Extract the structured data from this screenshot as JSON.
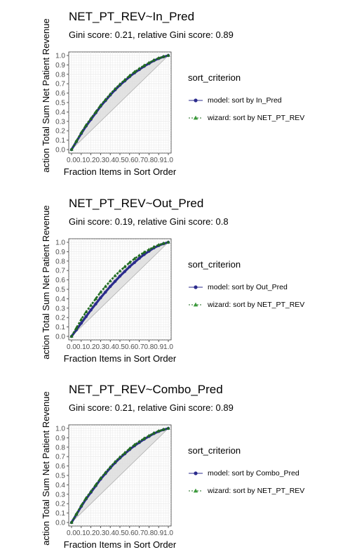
{
  "colors": {
    "model": "#2b2b8c",
    "wizard": "#1f6b1f",
    "band": "#d9d9d9",
    "grid": "#ebebeb",
    "diag": "#b0b0b0"
  },
  "chart_data": [
    {
      "type": "line",
      "title": "NET_PT_REV~In_Pred",
      "subtitle": "Gini score: 0.21, relative Gini score: 0.89",
      "xlabel": "Fraction Items in Sort Order",
      "ylabel": "action Total Sum Net Patient Revenue",
      "xlim": [
        0,
        1
      ],
      "ylim": [
        0,
        1
      ],
      "ticks": [
        "0.0",
        "0.1",
        "0.2",
        "0.3",
        "0.4",
        "0.5",
        "0.6",
        "0.7",
        "0.8",
        "0.9",
        "1.0"
      ],
      "grid": true,
      "legend_position": "right",
      "legend_title": "sort_criterion",
      "x": [
        0,
        0.05,
        0.1,
        0.15,
        0.2,
        0.25,
        0.3,
        0.35,
        0.4,
        0.45,
        0.5,
        0.55,
        0.6,
        0.65,
        0.7,
        0.75,
        0.8,
        0.85,
        0.9,
        0.95,
        1.0
      ],
      "series": [
        {
          "name": "model: sort by In_Pred",
          "marker": "circle",
          "values": [
            0,
            0.085,
            0.17,
            0.25,
            0.32,
            0.39,
            0.46,
            0.52,
            0.58,
            0.635,
            0.685,
            0.73,
            0.775,
            0.815,
            0.85,
            0.885,
            0.915,
            0.945,
            0.968,
            0.986,
            1.0
          ]
        },
        {
          "name": "wizard: sort by NET_PT_REV",
          "marker": "triangle",
          "values": [
            0,
            0.09,
            0.18,
            0.26,
            0.33,
            0.4,
            0.47,
            0.53,
            0.59,
            0.645,
            0.695,
            0.74,
            0.785,
            0.825,
            0.86,
            0.893,
            0.922,
            0.95,
            0.972,
            0.988,
            1.0
          ]
        }
      ]
    },
    {
      "type": "line",
      "title": "NET_PT_REV~Out_Pred",
      "subtitle": "Gini score: 0.19, relative Gini score: 0.8",
      "xlabel": "Fraction Items in Sort Order",
      "ylabel": "action Total Sum Net Patient Revenue",
      "xlim": [
        0,
        1
      ],
      "ylim": [
        0,
        1
      ],
      "ticks": [
        "0.0",
        "0.1",
        "0.2",
        "0.3",
        "0.4",
        "0.5",
        "0.6",
        "0.7",
        "0.8",
        "0.9",
        "1.0"
      ],
      "grid": true,
      "legend_position": "right",
      "legend_title": "sort_criterion",
      "x": [
        0,
        0.05,
        0.1,
        0.15,
        0.2,
        0.25,
        0.3,
        0.35,
        0.4,
        0.45,
        0.5,
        0.55,
        0.6,
        0.65,
        0.7,
        0.75,
        0.8,
        0.85,
        0.9,
        0.95,
        1.0
      ],
      "series": [
        {
          "name": "model: sort by Out_Pred",
          "marker": "circle",
          "values": [
            0,
            0.07,
            0.14,
            0.21,
            0.28,
            0.345,
            0.41,
            0.47,
            0.53,
            0.585,
            0.64,
            0.69,
            0.74,
            0.785,
            0.83,
            0.87,
            0.905,
            0.94,
            0.965,
            0.985,
            1.0
          ]
        },
        {
          "name": "wizard: sort by NET_PT_REV",
          "marker": "triangle",
          "values": [
            0,
            0.09,
            0.18,
            0.26,
            0.33,
            0.4,
            0.47,
            0.53,
            0.59,
            0.645,
            0.695,
            0.74,
            0.785,
            0.825,
            0.86,
            0.893,
            0.922,
            0.95,
            0.972,
            0.988,
            1.0
          ]
        }
      ]
    },
    {
      "type": "line",
      "title": "NET_PT_REV~Combo_Pred",
      "subtitle": "Gini score: 0.21, relative Gini score: 0.89",
      "xlabel": "Fraction Items in Sort Order",
      "ylabel": "action Total Sum Net Patient Revenue",
      "xlim": [
        0,
        1
      ],
      "ylim": [
        0,
        1
      ],
      "ticks": [
        "0.0",
        "0.1",
        "0.2",
        "0.3",
        "0.4",
        "0.5",
        "0.6",
        "0.7",
        "0.8",
        "0.9",
        "1.0"
      ],
      "grid": true,
      "legend_position": "right",
      "legend_title": "sort_criterion",
      "x": [
        0,
        0.05,
        0.1,
        0.15,
        0.2,
        0.25,
        0.3,
        0.35,
        0.4,
        0.45,
        0.5,
        0.55,
        0.6,
        0.65,
        0.7,
        0.75,
        0.8,
        0.85,
        0.9,
        0.95,
        1.0
      ],
      "series": [
        {
          "name": "model: sort by Combo_Pred",
          "marker": "circle",
          "values": [
            0,
            0.085,
            0.17,
            0.25,
            0.32,
            0.39,
            0.46,
            0.52,
            0.58,
            0.635,
            0.685,
            0.73,
            0.775,
            0.815,
            0.85,
            0.885,
            0.915,
            0.945,
            0.968,
            0.986,
            1.0
          ]
        },
        {
          "name": "wizard: sort by NET_PT_REV",
          "marker": "triangle",
          "values": [
            0,
            0.09,
            0.18,
            0.26,
            0.33,
            0.4,
            0.47,
            0.53,
            0.59,
            0.645,
            0.695,
            0.74,
            0.785,
            0.825,
            0.86,
            0.893,
            0.922,
            0.95,
            0.972,
            0.988,
            1.0
          ]
        }
      ]
    }
  ]
}
